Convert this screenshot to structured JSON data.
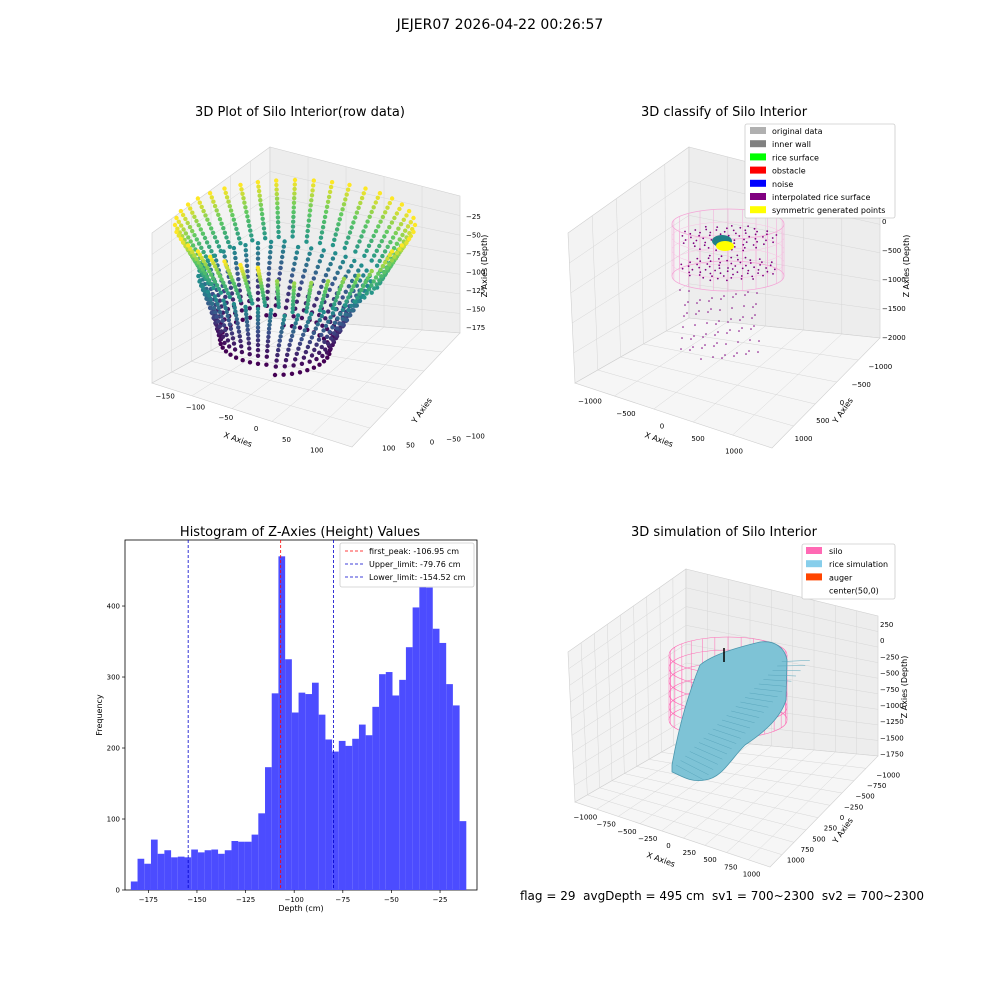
{
  "figure": {
    "suptitle": "JEJER07 2026-04-22 00:26:57",
    "footer": "flag = 29  avgDepth = 495 cm  sv1 = 700~2300  sv2 = 700~2300"
  },
  "chart_data": [
    {
      "type": "scatter",
      "title": "3D Plot of Silo Interior(row data)",
      "xlabel": "X Axies",
      "ylabel": "Y Axies",
      "zlabel": "Z Axies (Depth)",
      "x_ticks": [
        "−150",
        "−100",
        "−50",
        "0",
        "50",
        "100"
      ],
      "y_ticks": [
        "−100",
        "−50",
        "0",
        "50",
        "100"
      ],
      "z_ticks": [
        "−25",
        "−50",
        "−75",
        "−100",
        "−125",
        "−150",
        "−175"
      ],
      "xlim": [
        -150,
        130
      ],
      "ylim": [
        -100,
        120
      ],
      "zlim": [
        -190,
        -10
      ],
      "colormap": "viridis",
      "grid": true
    },
    {
      "type": "scatter",
      "title": "3D classify of Silo Interior",
      "xlabel": "X Axies",
      "ylabel": "Y Axies",
      "zlabel": "Z Axies (Depth)",
      "x_ticks": [
        "−1000",
        "−500",
        "0",
        "500",
        "1000"
      ],
      "y_ticks": [
        "−1000",
        "−500",
        "0",
        "500",
        "1000"
      ],
      "z_ticks": [
        "0",
        "−500",
        "−1000",
        "−1500",
        "−2000"
      ],
      "legend_position": "top-right",
      "legend": [
        {
          "label": "original data",
          "color": "#b0b0b0"
        },
        {
          "label": "inner wall",
          "color": "#808080"
        },
        {
          "label": "rice surface",
          "color": "#00ff00"
        },
        {
          "label": "obstacle",
          "color": "#ff0000"
        },
        {
          "label": "noise",
          "color": "#0000ff"
        },
        {
          "label": "interpolated rice surface",
          "color": "#800080"
        },
        {
          "label": "symmetric generated points",
          "color": "#ffff00"
        }
      ],
      "grid": true
    },
    {
      "type": "bar",
      "title": "Histogram of Z-Axies (Height) Values",
      "xlabel": "Depth (cm)",
      "ylabel": "Frequency",
      "xlim": [
        -187,
        -6
      ],
      "ylim": [
        0,
        493
      ],
      "x_ticks": [
        -175,
        -150,
        -125,
        -100,
        -75,
        -50,
        -25
      ],
      "y_ticks": [
        0,
        100,
        200,
        300,
        400
      ],
      "bin_start": -184,
      "bin_width": 3.45,
      "values": [
        12,
        44,
        37,
        71,
        51,
        56,
        46,
        47,
        46,
        57,
        53,
        56,
        57,
        51,
        56,
        69,
        68,
        68,
        78,
        108,
        173,
        277,
        470,
        325,
        250,
        278,
        276,
        292,
        247,
        212,
        195,
        210,
        203,
        213,
        233,
        218,
        258,
        304,
        307,
        274,
        296,
        342,
        398,
        442,
        426,
        368,
        348,
        290,
        260,
        97
      ],
      "bar_color": "#4c4cff",
      "vlines": [
        {
          "label": "first_peak: -106.95 cm",
          "x": -106.95,
          "color": "#ff0000"
        },
        {
          "label": "Upper_limit: -79.76 cm",
          "x": -79.76,
          "color": "#0000cc"
        },
        {
          "label": "Lower_limit: -154.52 cm",
          "x": -154.52,
          "color": "#0000cc"
        }
      ],
      "legend_position": "top-right"
    },
    {
      "type": "surface",
      "title": "3D simulation of Silo Interior",
      "xlabel": "X Axies",
      "ylabel": "Y Axies",
      "zlabel": "Z Axies (Depth)",
      "x_ticks": [
        "−1000",
        "−750",
        "−500",
        "−250",
        "0",
        "250",
        "500",
        "750",
        "1000"
      ],
      "y_ticks": [
        "−1000",
        "−750",
        "−500",
        "−250",
        "0",
        "250",
        "500",
        "750",
        "1000"
      ],
      "z_ticks": [
        "250",
        "0",
        "−250",
        "−500",
        "−750",
        "−1000",
        "−1250",
        "−1500",
        "−1750"
      ],
      "legend_position": "top-right",
      "legend": [
        {
          "label": "silo",
          "color": "#ff69b4"
        },
        {
          "label": "rice simulation",
          "color": "#87ceeb"
        },
        {
          "label": "auger",
          "color": "#ff4500"
        },
        {
          "label": "center(50,0)",
          "color": "#ffffff"
        }
      ],
      "grid": true
    }
  ]
}
